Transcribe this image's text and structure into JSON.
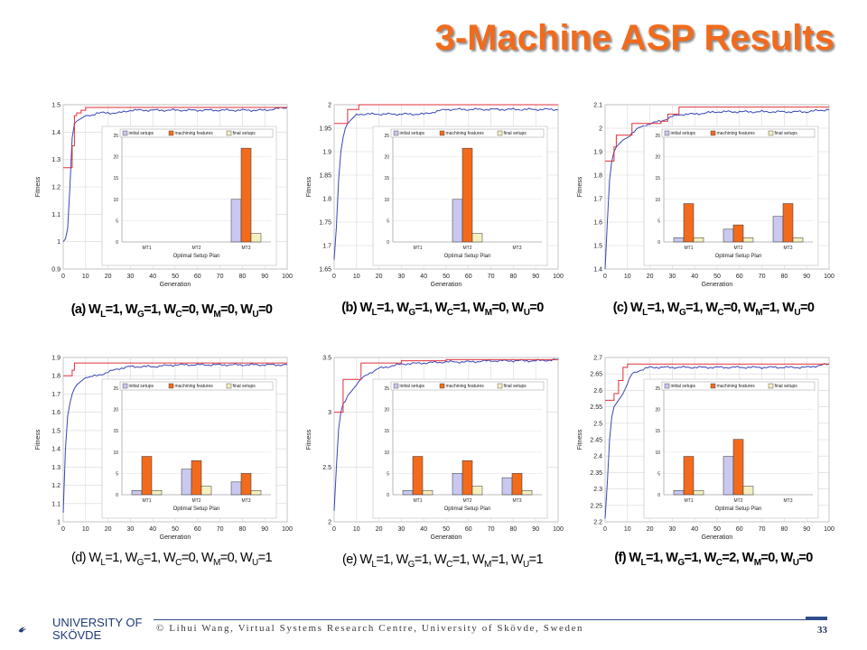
{
  "title": "3-Machine ASP Results",
  "footer": {
    "text": "© Lihui Wang, Virtual Systems Research Centre, University of Skövde, Sweden",
    "page": "33",
    "logo_line1": "UNIVERSITY OF",
    "logo_line2": "SKÖVDE"
  },
  "captions": [
    {
      "pre": "(a) W",
      "parts": [
        [
          "L",
          "=1, W"
        ],
        [
          "G",
          "=1, W"
        ],
        [
          "C",
          "=0, W"
        ],
        [
          "M",
          "=0, W"
        ],
        [
          "U",
          "=0"
        ]
      ],
      "bold": true
    },
    {
      "pre": "(b) W",
      "parts": [
        [
          "L",
          "=1, W"
        ],
        [
          "G",
          "=1, W"
        ],
        [
          "C",
          "=1, W"
        ],
        [
          "M",
          "=0, W"
        ],
        [
          "U",
          "=0"
        ]
      ],
      "bold": true
    },
    {
      "pre": "(c) W",
      "parts": [
        [
          "L",
          "=1, W"
        ],
        [
          "G",
          "=1, W"
        ],
        [
          "C",
          "=0, W"
        ],
        [
          "M",
          "=1, W"
        ],
        [
          "U",
          "=0"
        ]
      ],
      "bold": true
    },
    {
      "pre": "(d) W",
      "parts": [
        [
          "L",
          "=1, W"
        ],
        [
          "G",
          "=1, W"
        ],
        [
          "C",
          "=0, W"
        ],
        [
          "M",
          "=0, W"
        ],
        [
          "U",
          "=1"
        ]
      ],
      "bold": false
    },
    {
      "pre": "(e) W",
      "parts": [
        [
          "L",
          "=1, W"
        ],
        [
          "G",
          "=1, W"
        ],
        [
          "C",
          "=1, W"
        ],
        [
          "M",
          "=1, W"
        ],
        [
          "U",
          "=1"
        ]
      ],
      "bold": false
    },
    {
      "pre": "(f) W",
      "parts": [
        [
          "L",
          "=1, W"
        ],
        [
          "G",
          "=1, W"
        ],
        [
          "C",
          "=2, W"
        ],
        [
          "M",
          "=0, W"
        ],
        [
          "U",
          "=0"
        ]
      ],
      "bold": true
    }
  ],
  "colors": {
    "best": "#e0303a",
    "avg": "#3a46b8",
    "bar_initial": "#c8c8f0",
    "bar_machining": "#f26b1d",
    "bar_final": "#f5f0c0",
    "title": "#f26b1d"
  },
  "chart_data": [
    {
      "type": "line",
      "xlabel": "Generation",
      "ylabel": "Fitness",
      "xlim": [
        0,
        100
      ],
      "ylim": [
        0.9,
        1.5
      ],
      "xticks": [
        "0",
        "10",
        "20",
        "30",
        "40",
        "50",
        "60",
        "70",
        "80",
        "90",
        "100"
      ],
      "yticks": [
        "0.9",
        "1",
        "1.1",
        "1.2",
        "1.3",
        "1.4",
        "1.5"
      ],
      "best": {
        "x": [
          0,
          1,
          2,
          3,
          4,
          5,
          6,
          8,
          10,
          15,
          20,
          40,
          60,
          80,
          100
        ],
        "y": [
          1.27,
          1.27,
          1.27,
          1.27,
          1.35,
          1.46,
          1.47,
          1.48,
          1.49,
          1.49,
          1.49,
          1.49,
          1.49,
          1.49,
          1.49
        ]
      },
      "avg": {
        "x": [
          0,
          1,
          2,
          3,
          4,
          5,
          6,
          8,
          10,
          12,
          15,
          20,
          25,
          30,
          40,
          50,
          60,
          70,
          80,
          90,
          100
        ],
        "y": [
          1.0,
          1.01,
          1.05,
          1.2,
          1.38,
          1.43,
          1.44,
          1.45,
          1.46,
          1.46,
          1.47,
          1.47,
          1.47,
          1.48,
          1.48,
          1.48,
          1.48,
          1.48,
          1.48,
          1.48,
          1.49
        ]
      },
      "inset": {
        "type": "bar",
        "categories": [
          "MT1",
          "MT2",
          "MT3"
        ],
        "xlabel": "Optimal Setup Plan",
        "yticks": [
          "0",
          "5",
          "10",
          "15",
          "20",
          "25"
        ],
        "ylim": [
          0,
          25
        ],
        "series": [
          {
            "name": "initial setups",
            "values": [
              0,
              0,
              10
            ]
          },
          {
            "name": "machining features",
            "values": [
              0,
              0,
              22
            ]
          },
          {
            "name": "final setups",
            "values": [
              0,
              0,
              2
            ]
          }
        ]
      }
    },
    {
      "type": "line",
      "xlabel": "Generation",
      "ylabel": "Fitness",
      "xlim": [
        0,
        100
      ],
      "ylim": [
        1.65,
        2.0
      ],
      "xticks": [
        "0",
        "10",
        "20",
        "30",
        "40",
        "50",
        "60",
        "70",
        "80",
        "90",
        "100"
      ],
      "yticks": [
        "1.65",
        "1.7",
        "1.75",
        "1.8",
        "1.85",
        "1.9",
        "1.95",
        "2"
      ],
      "best": {
        "x": [
          0,
          1,
          5,
          6,
          10,
          11,
          15,
          20,
          40,
          60,
          80,
          100
        ],
        "y": [
          1.96,
          1.96,
          1.96,
          1.99,
          1.99,
          2.0,
          2.0,
          2.0,
          2.0,
          2.0,
          2.0,
          2.0
        ]
      },
      "avg": {
        "x": [
          0,
          1,
          2,
          3,
          4,
          5,
          6,
          8,
          10,
          15,
          20,
          30,
          40,
          50,
          60,
          70,
          80,
          90,
          100
        ],
        "y": [
          1.67,
          1.74,
          1.84,
          1.9,
          1.93,
          1.95,
          1.96,
          1.97,
          1.98,
          1.98,
          1.98,
          1.98,
          1.98,
          1.99,
          1.99,
          1.99,
          1.99,
          1.99,
          1.99
        ]
      },
      "inset": {
        "type": "bar",
        "categories": [
          "MT1",
          "MT2",
          "MT3"
        ],
        "xlabel": "Optimal Setup Plan",
        "yticks": [
          "0",
          "5",
          "10",
          "15",
          "20",
          "25"
        ],
        "ylim": [
          0,
          25
        ],
        "series": [
          {
            "name": "initial setups",
            "values": [
              0,
              10,
              0
            ]
          },
          {
            "name": "machining features",
            "values": [
              0,
              22,
              0
            ]
          },
          {
            "name": "final setups",
            "values": [
              0,
              2,
              0
            ]
          }
        ]
      }
    },
    {
      "type": "line",
      "xlabel": "Generation",
      "ylabel": "Fitness",
      "xlim": [
        0,
        100
      ],
      "ylim": [
        1.4,
        2.1
      ],
      "xticks": [
        "0",
        "10",
        "20",
        "30",
        "40",
        "50",
        "60",
        "70",
        "80",
        "90",
        "100"
      ],
      "yticks": [
        "1.4",
        "1.5",
        "1.6",
        "1.7",
        "1.8",
        "1.9",
        "2",
        "2.1"
      ],
      "best": {
        "x": [
          0,
          1,
          3,
          4,
          5,
          6,
          10,
          12,
          15,
          25,
          28,
          30,
          33,
          40,
          60,
          80,
          100
        ],
        "y": [
          1.86,
          1.86,
          1.86,
          1.92,
          1.97,
          1.97,
          1.97,
          2.02,
          2.02,
          2.03,
          2.06,
          2.06,
          2.09,
          2.09,
          2.09,
          2.09,
          2.09
        ]
      },
      "avg": {
        "x": [
          0,
          1,
          2,
          3,
          4,
          5,
          6,
          8,
          10,
          12,
          15,
          20,
          25,
          30,
          35,
          40,
          50,
          60,
          70,
          80,
          90,
          100
        ],
        "y": [
          1.4,
          1.6,
          1.78,
          1.86,
          1.9,
          1.92,
          1.93,
          1.95,
          1.96,
          1.98,
          2.0,
          2.02,
          2.03,
          2.05,
          2.06,
          2.06,
          2.07,
          2.07,
          2.07,
          2.07,
          2.07,
          2.08
        ]
      },
      "inset": {
        "type": "bar",
        "categories": [
          "MT1",
          "MT2",
          "MT3"
        ],
        "xlabel": "Optimal Setup Plan",
        "yticks": [
          "0",
          "5",
          "10",
          "15",
          "20",
          "25"
        ],
        "ylim": [
          0,
          25
        ],
        "series": [
          {
            "name": "initial setups",
            "values": [
              1,
              3,
              6
            ]
          },
          {
            "name": "machining features",
            "values": [
              9,
              4,
              9
            ]
          },
          {
            "name": "final setups",
            "values": [
              1,
              1,
              1
            ]
          }
        ]
      }
    },
    {
      "type": "line",
      "xlabel": "Generation",
      "ylabel": "Fitness",
      "xlim": [
        0,
        100
      ],
      "ylim": [
        1.0,
        1.9
      ],
      "xticks": [
        "0",
        "10",
        "20",
        "30",
        "40",
        "50",
        "60",
        "70",
        "80",
        "90",
        "100"
      ],
      "yticks": [
        "1",
        "1.1",
        "1.2",
        "1.3",
        "1.4",
        "1.5",
        "1.6",
        "1.7",
        "1.8",
        "1.9"
      ],
      "best": {
        "x": [
          0,
          1,
          3,
          4,
          5,
          6,
          10,
          20,
          40,
          60,
          80,
          100
        ],
        "y": [
          1.8,
          1.8,
          1.8,
          1.83,
          1.87,
          1.87,
          1.87,
          1.87,
          1.87,
          1.87,
          1.87,
          1.87
        ]
      },
      "avg": {
        "x": [
          0,
          1,
          2,
          3,
          4,
          5,
          6,
          8,
          10,
          15,
          20,
          25,
          30,
          40,
          50,
          60,
          70,
          80,
          90,
          100
        ],
        "y": [
          1.05,
          1.4,
          1.58,
          1.65,
          1.7,
          1.73,
          1.75,
          1.77,
          1.79,
          1.8,
          1.82,
          1.84,
          1.85,
          1.85,
          1.86,
          1.86,
          1.86,
          1.86,
          1.86,
          1.86
        ]
      },
      "inset": {
        "type": "bar",
        "categories": [
          "MT1",
          "MT2",
          "MT3"
        ],
        "xlabel": "Optimal Setup Plan",
        "yticks": [
          "0",
          "5",
          "10",
          "15",
          "20",
          "25"
        ],
        "ylim": [
          0,
          25
        ],
        "series": [
          {
            "name": "initial setups",
            "values": [
              1,
              6,
              3
            ]
          },
          {
            "name": "machining features",
            "values": [
              9,
              8,
              5
            ]
          },
          {
            "name": "final setups",
            "values": [
              1,
              2,
              1
            ]
          }
        ]
      }
    },
    {
      "type": "line",
      "xlabel": "Generation",
      "ylabel": "Fitness",
      "xlim": [
        0,
        100
      ],
      "ylim": [
        2.0,
        3.5
      ],
      "xticks": [
        "0",
        "10",
        "20",
        "30",
        "40",
        "50",
        "60",
        "70",
        "80",
        "90",
        "100"
      ],
      "yticks": [
        "2",
        "2.5",
        "3",
        "3.5"
      ],
      "best": {
        "x": [
          0,
          1,
          3,
          4,
          8,
          10,
          12,
          15,
          30,
          50,
          70,
          100
        ],
        "y": [
          3.0,
          3.0,
          3.0,
          3.3,
          3.3,
          3.3,
          3.45,
          3.45,
          3.47,
          3.48,
          3.48,
          3.48
        ]
      },
      "avg": {
        "x": [
          0,
          1,
          2,
          3,
          4,
          5,
          6,
          8,
          10,
          12,
          15,
          20,
          25,
          30,
          40,
          50,
          60,
          70,
          80,
          90,
          100
        ],
        "y": [
          2.1,
          2.5,
          2.85,
          3.0,
          3.08,
          3.1,
          3.15,
          3.2,
          3.25,
          3.3,
          3.35,
          3.4,
          3.42,
          3.44,
          3.45,
          3.46,
          3.46,
          3.47,
          3.47,
          3.47,
          3.48
        ]
      },
      "inset": {
        "type": "bar",
        "categories": [
          "MT1",
          "MT2",
          "MT3"
        ],
        "xlabel": "Optimal Setup Plan",
        "yticks": [
          "0",
          "5",
          "10",
          "15",
          "20",
          "25"
        ],
        "ylim": [
          0,
          25
        ],
        "series": [
          {
            "name": "initial setups",
            "values": [
              1,
              5,
              4
            ]
          },
          {
            "name": "machining features",
            "values": [
              9,
              8,
              5
            ]
          },
          {
            "name": "final setups",
            "values": [
              1,
              2,
              1
            ]
          }
        ]
      }
    },
    {
      "type": "line",
      "xlabel": "Generation",
      "ylabel": "Fitness",
      "xlim": [
        0,
        100
      ],
      "ylim": [
        2.2,
        2.7
      ],
      "xticks": [
        "0",
        "10",
        "20",
        "30",
        "40",
        "50",
        "60",
        "70",
        "80",
        "90",
        "100"
      ],
      "yticks": [
        "2.2",
        "2.25",
        "2.3",
        "2.35",
        "2.4",
        "2.45",
        "2.5",
        "2.55",
        "2.6",
        "2.65",
        "2.7"
      ],
      "best": {
        "x": [
          0,
          1,
          3,
          4,
          6,
          8,
          10,
          20,
          40,
          60,
          80,
          100
        ],
        "y": [
          2.57,
          2.57,
          2.57,
          2.59,
          2.63,
          2.67,
          2.68,
          2.68,
          2.68,
          2.68,
          2.68,
          2.68
        ]
      },
      "avg": {
        "x": [
          0,
          1,
          2,
          3,
          4,
          5,
          6,
          8,
          10,
          12,
          15,
          20,
          30,
          40,
          50,
          60,
          70,
          80,
          90,
          100
        ],
        "y": [
          2.21,
          2.32,
          2.45,
          2.52,
          2.55,
          2.56,
          2.57,
          2.59,
          2.62,
          2.65,
          2.66,
          2.67,
          2.67,
          2.67,
          2.67,
          2.67,
          2.67,
          2.67,
          2.67,
          2.68
        ]
      },
      "inset": {
        "type": "bar",
        "categories": [
          "MT1",
          "MT2",
          "MT3"
        ],
        "xlabel": "Optimal Setup Plan",
        "yticks": [
          "0",
          "5",
          "10",
          "15",
          "20",
          "25"
        ],
        "ylim": [
          0,
          25
        ],
        "series": [
          {
            "name": "initial setups",
            "values": [
              1,
              9,
              0
            ]
          },
          {
            "name": "machining features",
            "values": [
              9,
              13,
              0
            ]
          },
          {
            "name": "final setups",
            "values": [
              1,
              2,
              0
            ]
          }
        ]
      }
    }
  ]
}
